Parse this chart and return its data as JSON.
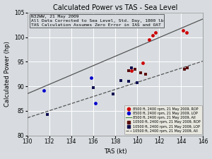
{
  "title": "Calculated Power vs TAS - Sea Level",
  "xlabel": "TAS (kt)",
  "ylabel": "Calculated Power (hp)",
  "xlim": [
    130,
    146
  ],
  "ylim": [
    80,
    105
  ],
  "annotation_lines": [
    "N32WW, 21 May 2009",
    "All Data Corrected to Sea Level, Std. Day, 1800 lb",
    "TAS Calculation Assumes Zero Error in IAS and OAT"
  ],
  "bg_color": "#d8dce0",
  "series": {
    "8500_ROP": {
      "x": [
        139.5,
        140.5,
        141.1,
        141.4,
        141.7,
        144.2,
        144.5
      ],
      "y": [
        93.2,
        94.8,
        99.5,
        100.3,
        100.9,
        101.3,
        101.0
      ],
      "color": "#cc0000",
      "marker": "o",
      "size": 12,
      "label": "8500 ft, 2400 rpm, 21 May 2009, ROP"
    },
    "8500_LOP": {
      "x": [
        131.5,
        135.8,
        136.2
      ],
      "y": [
        89.2,
        91.8,
        86.5
      ],
      "color": "#0000cc",
      "marker": "o",
      "size": 12,
      "label": "8500 ft, 2400 rpm, 21 May 2009, LOP"
    },
    "10500_ROP": {
      "x": [
        139.2,
        139.8,
        140.3,
        140.8,
        144.3,
        144.6
      ],
      "y": [
        93.2,
        93.5,
        92.8,
        92.5,
        93.5,
        93.8
      ],
      "color": "#5a1010",
      "marker": "s",
      "size": 10,
      "label": "10500 ft, 2400 rpm, 21 May 2009, ROP"
    },
    "10500_LOP": {
      "x": [
        131.8,
        136.0,
        137.8,
        138.5,
        139.2,
        139.5,
        140.0
      ],
      "y": [
        84.2,
        89.8,
        88.5,
        91.2,
        91.0,
        93.8,
        90.8
      ],
      "color": "#101050",
      "marker": "s",
      "size": 10,
      "label": "10500 ft, 2400 rpm, 21 May 2009, LOP"
    }
  },
  "trendline_8500": {
    "x_range": [
      130,
      146
    ],
    "slope": 0.95,
    "intercept": -35.0,
    "color": "#555555",
    "linestyle": "-",
    "linewidth": 0.9
  },
  "trendline_10500": {
    "x_range": [
      130,
      146
    ],
    "slope": 0.72,
    "intercept": -10.0,
    "color": "#555555",
    "linestyle": "--",
    "linewidth": 0.9
  },
  "legend_labels": [
    "8500 ft, 2400 rpm, 21 May 2009, ROP",
    "8500 ft, 2400 rpm, 21 May 2009, LOP",
    "8500 ft, 2400 rpm, 21 May 2009, All",
    "10500 ft, 2400 rpm, 21 May 2009, ROP",
    "10500 ft, 2400 rpm, 21 May 2009, LOP",
    "10500 ft, 2400 rpm, 21 May 2009, All"
  ],
  "legend_colors": [
    "#cc0000",
    "#0000cc",
    "#448844",
    "#5a1010",
    "#101050",
    "#555555"
  ],
  "legend_markers": [
    "o",
    "o",
    "None",
    "s",
    "s",
    "None"
  ],
  "legend_linestyles": [
    "None",
    "None",
    "-",
    "None",
    "None",
    "--"
  ]
}
